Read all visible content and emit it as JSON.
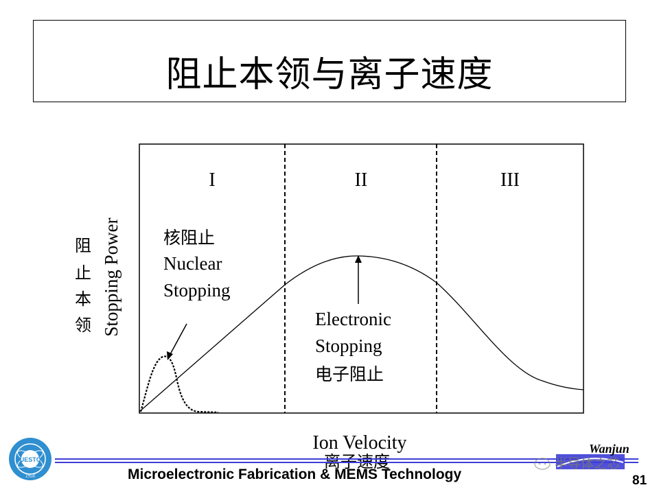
{
  "slide": {
    "title": "阻止本领与离子速度",
    "footer": "Microelectronic Fabrication & MEMS Technology",
    "page_number": "81",
    "logo_text": "Wanjun",
    "watermark": "半导体之芯",
    "badge_text": "UESTC",
    "badge_year": "1956"
  },
  "diagram": {
    "regions": [
      "I",
      "II",
      "III"
    ],
    "y_label_cn": [
      "阻",
      "止",
      "本",
      "领"
    ],
    "y_label_en": "Stopping Power",
    "x_label_en": "Ion Velocity",
    "x_label_cn": "离子速度",
    "nuclear_label_cn": "核阻止",
    "nuclear_label_en": [
      "Nuclear",
      "Stopping"
    ],
    "electronic_label_en": [
      "Electronic",
      "Stopping"
    ],
    "electronic_label_cn": "电子阻止"
  },
  "colors": {
    "footer_line": "#3d3dd8",
    "badge": "#2f8fd0"
  }
}
